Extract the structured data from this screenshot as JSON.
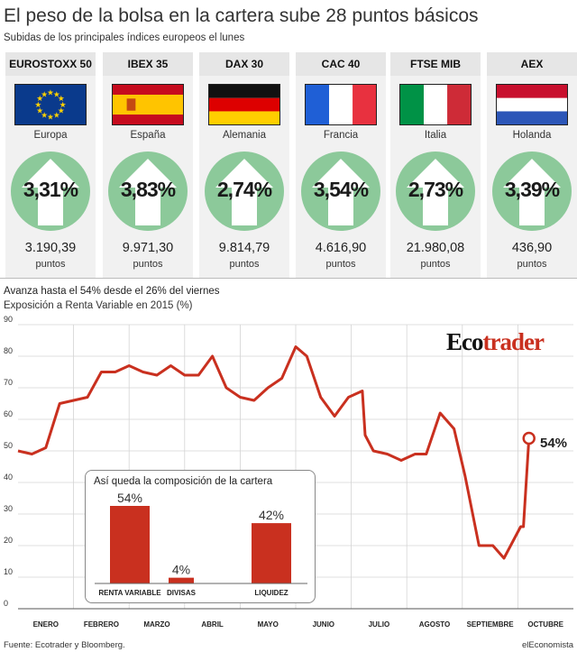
{
  "header": {
    "title": "El peso de la bolsa en la cartera sube 28 puntos básicos",
    "subtitle": "Subidas de los principales índices europeos el lunes"
  },
  "indices": [
    {
      "name": "EUROSTOXX 50",
      "country": "Europa",
      "change": "3,31%",
      "value": "3.190,39",
      "unit": "puntos",
      "flag": "eu"
    },
    {
      "name": "IBEX 35",
      "country": "España",
      "change": "3,83%",
      "value": "9.971,30",
      "unit": "puntos",
      "flag": "es"
    },
    {
      "name": "DAX 30",
      "country": "Alemania",
      "change": "2,74%",
      "value": "9.814,79",
      "unit": "puntos",
      "flag": "de"
    },
    {
      "name": "CAC 40",
      "country": "Francia",
      "change": "3,54%",
      "value": "4.616,90",
      "unit": "puntos",
      "flag": "fr"
    },
    {
      "name": "FTSE MIB",
      "country": "Italia",
      "change": "2,73%",
      "value": "21.980,08",
      "unit": "puntos",
      "flag": "it"
    },
    {
      "name": "AEX",
      "country": "Holanda",
      "change": "3,39%",
      "value": "436,90",
      "unit": "puntos",
      "flag": "nl"
    }
  ],
  "colors": {
    "badge": "#8cc99a",
    "arrow": "#ffffff",
    "line": "#c9301f",
    "bar": "#c9301f",
    "card": "#f1f1f1",
    "grid": "#d4d4d4"
  },
  "logo": {
    "part1": "Eco",
    "part2": "trader"
  },
  "chart_data": [
    {
      "type": "line",
      "title": "Avanza hasta el 54% desde el 26% del viernes",
      "subtitle": "Exposición a Renta Variable en 2015 (%)",
      "ylim": [
        0,
        90
      ],
      "yticks": [
        0,
        10,
        20,
        30,
        40,
        50,
        60,
        70,
        80,
        90
      ],
      "month_labels": [
        "ENERO",
        "FEBRERO",
        "MARZO",
        "ABRIL",
        "MAYO",
        "JUNIO",
        "JULIO",
        "AGOSTO",
        "SEPTIEMBRE",
        "OCTUBRE"
      ],
      "month_positions": [
        0.5,
        1.5,
        2.5,
        3.5,
        4.5,
        5.5,
        6.5,
        7.5,
        8.5,
        9.5
      ],
      "xlim": [
        0,
        10
      ],
      "grid": true,
      "series": [
        {
          "x": [
            0.0,
            0.25,
            0.5,
            0.75,
            1.0,
            1.25,
            1.5,
            1.75,
            2.0,
            2.25,
            2.5,
            2.75,
            3.0,
            3.25,
            3.5,
            3.75,
            4.0,
            4.25,
            4.5,
            4.75,
            5.0,
            5.2,
            5.45,
            5.7,
            5.95,
            6.2,
            6.25,
            6.4,
            6.65,
            6.9,
            7.15,
            7.35,
            7.6,
            7.85,
            8.05,
            8.3,
            8.55,
            8.75,
            9.05,
            9.1
          ],
          "y": [
            50,
            49,
            51,
            65,
            66,
            67,
            75,
            75,
            77,
            75,
            74,
            77,
            74,
            74,
            80,
            70,
            67,
            66,
            70,
            73,
            83,
            80,
            67,
            61,
            67,
            69,
            55,
            50,
            49,
            47,
            49,
            49,
            62,
            57,
            42,
            20,
            20,
            16,
            26,
            26
          ],
          "end_label": "54%",
          "end_x": 9.2,
          "end_y": 54
        }
      ]
    },
    {
      "type": "bar",
      "title": "Así queda la composición de la cartera",
      "categories": [
        "RENTA VARIABLE",
        "DIVISAS",
        "LIQUIDEZ"
      ],
      "values": [
        54,
        4,
        42
      ],
      "labels": [
        "54%",
        "4%",
        "42%"
      ]
    }
  ],
  "footer": {
    "source": "Fuente: Ecotrader y Bloomberg.",
    "brand": "elEconomista"
  }
}
